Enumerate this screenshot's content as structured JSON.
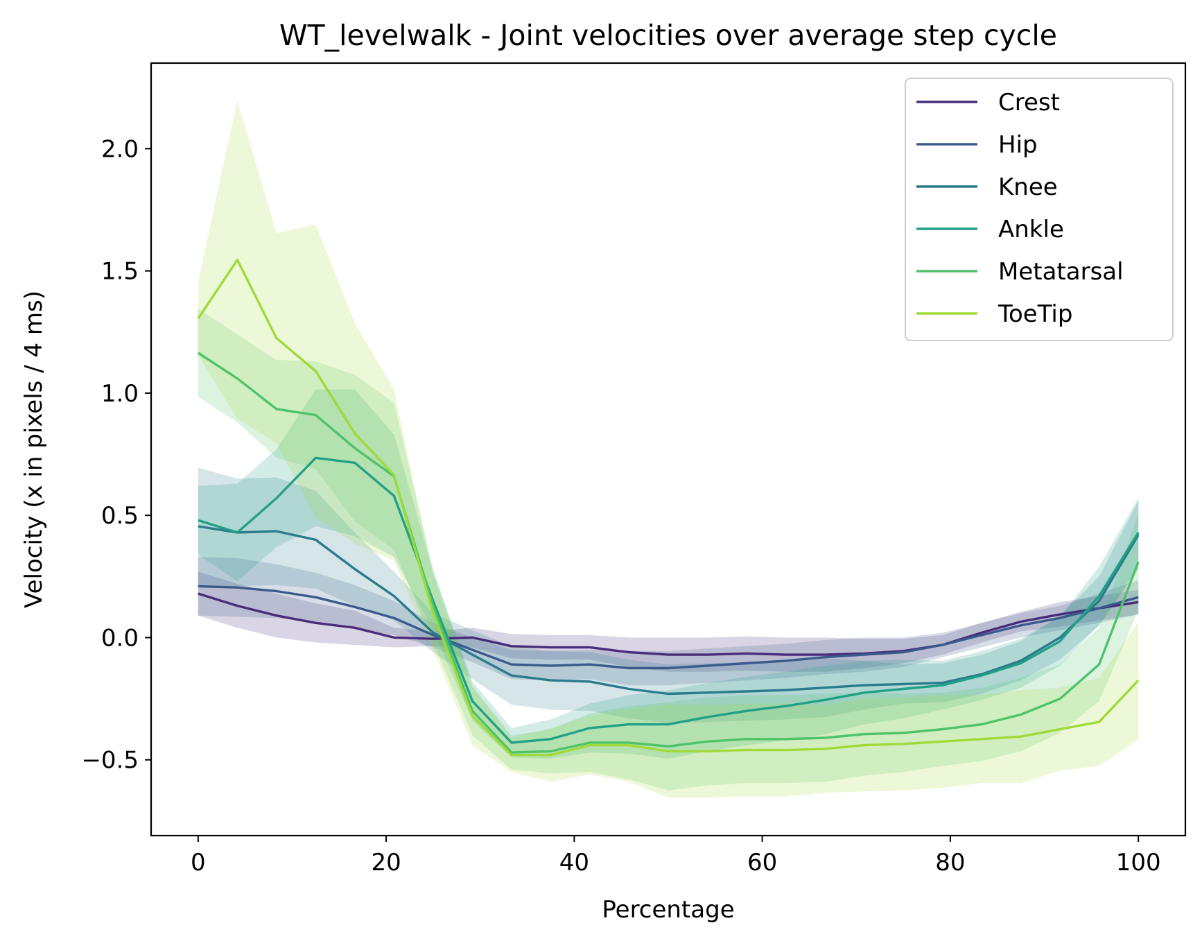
{
  "chart_data": {
    "type": "line",
    "title": "WT_levelwalk - Joint velocities over average step cycle",
    "xlabel": "Percentage",
    "ylabel": "Velocity (x in pixels / 4 ms)",
    "xlim": [
      -5,
      105
    ],
    "ylim": [
      -0.81,
      2.35
    ],
    "xticks": [
      0,
      20,
      40,
      60,
      80,
      100
    ],
    "xtick_labels": [
      "0",
      "20",
      "40",
      "60",
      "80",
      "100"
    ],
    "yticks": [
      -0.5,
      0.0,
      0.5,
      1.0,
      1.5,
      2.0
    ],
    "ytick_labels": [
      "−0.5",
      "0.0",
      "0.5",
      "1.0",
      "1.5",
      "2.0"
    ],
    "grid": false,
    "legend_position": "top-right",
    "x": [
      0,
      4.17,
      8.33,
      12.5,
      16.67,
      20.83,
      25,
      29.17,
      33.33,
      37.5,
      41.67,
      45.83,
      50,
      54.17,
      58.33,
      62.5,
      66.67,
      70.83,
      75,
      79.17,
      83.33,
      87.5,
      91.67,
      95.83,
      100
    ],
    "series": [
      {
        "name": "Crest",
        "color": "#472c7a",
        "values": [
          0.18,
          0.13,
          0.09,
          0.06,
          0.04,
          0.0,
          -0.005,
          0.0,
          -0.035,
          -0.04,
          -0.04,
          -0.06,
          -0.07,
          -0.07,
          -0.065,
          -0.07,
          -0.07,
          -0.065,
          -0.055,
          -0.03,
          0.02,
          0.065,
          0.095,
          0.12,
          0.145
        ],
        "spread": [
          0.09,
          0.09,
          0.09,
          0.08,
          0.07,
          0.04,
          0.03,
          0.04,
          0.05,
          0.05,
          0.05,
          0.06,
          0.07,
          0.07,
          0.07,
          0.07,
          0.07,
          0.06,
          0.05,
          0.04,
          0.04,
          0.04,
          0.05,
          0.05,
          0.05
        ]
      },
      {
        "name": "Hip",
        "color": "#3b5a8c",
        "values": [
          0.21,
          0.205,
          0.19,
          0.165,
          0.125,
          0.08,
          0.01,
          -0.05,
          -0.11,
          -0.115,
          -0.11,
          -0.125,
          -0.125,
          -0.115,
          -0.105,
          -0.095,
          -0.08,
          -0.07,
          -0.06,
          -0.03,
          0.01,
          0.05,
          0.08,
          0.12,
          0.165
        ],
        "spread": [
          0.12,
          0.12,
          0.11,
          0.1,
          0.09,
          0.07,
          0.05,
          0.05,
          0.06,
          0.06,
          0.06,
          0.07,
          0.07,
          0.07,
          0.07,
          0.07,
          0.07,
          0.07,
          0.06,
          0.05,
          0.05,
          0.05,
          0.05,
          0.06,
          0.07
        ]
      },
      {
        "name": "Knee",
        "color": "#2b7b8c",
        "values": [
          0.455,
          0.43,
          0.435,
          0.4,
          0.28,
          0.17,
          0.02,
          -0.07,
          -0.155,
          -0.175,
          -0.18,
          -0.21,
          -0.23,
          -0.225,
          -0.22,
          -0.215,
          -0.205,
          -0.195,
          -0.19,
          -0.185,
          -0.15,
          -0.095,
          0.0,
          0.15,
          0.42
        ],
        "spread": [
          0.24,
          0.22,
          0.22,
          0.2,
          0.15,
          0.1,
          0.08,
          0.1,
          0.12,
          0.12,
          0.12,
          0.12,
          0.12,
          0.12,
          0.12,
          0.12,
          0.12,
          0.1,
          0.08,
          0.08,
          0.08,
          0.08,
          0.09,
          0.1,
          0.14
        ]
      },
      {
        "name": "Ankle",
        "color": "#22a085",
        "values": [
          0.48,
          0.43,
          0.57,
          0.735,
          0.715,
          0.58,
          0.15,
          -0.26,
          -0.43,
          -0.415,
          -0.37,
          -0.355,
          -0.355,
          -0.325,
          -0.3,
          -0.28,
          -0.255,
          -0.225,
          -0.21,
          -0.195,
          -0.155,
          -0.105,
          -0.015,
          0.17,
          0.43
        ],
        "spread": [
          0.14,
          0.2,
          0.2,
          0.28,
          0.3,
          0.25,
          0.12,
          0.08,
          0.06,
          0.08,
          0.1,
          0.12,
          0.14,
          0.14,
          0.14,
          0.14,
          0.14,
          0.13,
          0.12,
          0.1,
          0.1,
          0.1,
          0.1,
          0.12,
          0.14
        ]
      },
      {
        "name": "Metatarsal",
        "color": "#4ec36b",
        "values": [
          1.165,
          1.06,
          0.935,
          0.91,
          0.775,
          0.66,
          0.13,
          -0.3,
          -0.47,
          -0.465,
          -0.43,
          -0.43,
          -0.445,
          -0.425,
          -0.415,
          -0.415,
          -0.41,
          -0.395,
          -0.39,
          -0.375,
          -0.355,
          -0.315,
          -0.25,
          -0.11,
          0.31
        ],
        "spread": [
          0.18,
          0.18,
          0.2,
          0.22,
          0.3,
          0.3,
          0.15,
          0.1,
          0.07,
          0.09,
          0.12,
          0.15,
          0.18,
          0.18,
          0.18,
          0.18,
          0.18,
          0.17,
          0.16,
          0.15,
          0.15,
          0.15,
          0.14,
          0.15,
          0.2
        ]
      },
      {
        "name": "ToeTip",
        "color": "#a0da39",
        "values": [
          1.305,
          1.545,
          1.225,
          1.09,
          0.835,
          0.665,
          0.1,
          -0.32,
          -0.48,
          -0.48,
          -0.44,
          -0.44,
          -0.465,
          -0.465,
          -0.46,
          -0.46,
          -0.455,
          -0.44,
          -0.435,
          -0.425,
          -0.415,
          -0.405,
          -0.375,
          -0.345,
          -0.175
        ],
        "spread": [
          0.15,
          0.65,
          0.43,
          0.6,
          0.45,
          0.35,
          0.15,
          0.12,
          0.07,
          0.11,
          0.12,
          0.15,
          0.19,
          0.19,
          0.19,
          0.19,
          0.18,
          0.19,
          0.19,
          0.19,
          0.18,
          0.19,
          0.17,
          0.18,
          0.24
        ]
      }
    ]
  }
}
